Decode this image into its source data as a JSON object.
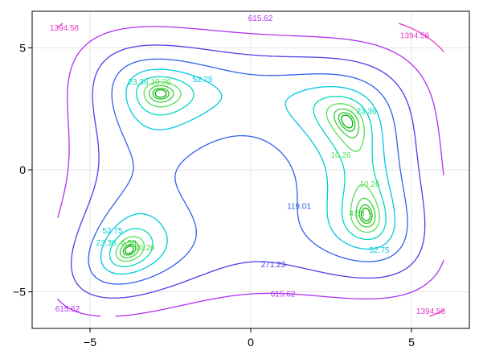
{
  "chart_data": {
    "type": "contour",
    "function": "(x^2 + y - 11)^2 + (x + y^2 - 7)^2",
    "xlim": [
      -6.8,
      6.8
    ],
    "ylim": [
      -6.5,
      6.5
    ],
    "domain": [
      -6,
      6
    ],
    "x_ticks": [
      -5,
      0,
      5
    ],
    "y_ticks": [
      -5,
      0,
      5
    ],
    "x_tick_labels": [
      "−5",
      "0",
      "5"
    ],
    "y_tick_labels": [
      "−5",
      "0",
      "5"
    ],
    "grid": true,
    "levels": [
      1.0,
      2.05,
      4.58,
      10.26,
      23.36,
      52.75,
      119.01,
      271.23,
      615.62,
      1394.58
    ],
    "level_colors": [
      "#00b000",
      "#1ec41e",
      "#3ad23a",
      "#55e055",
      "#00d8b8",
      "#00c8e0",
      "#3060f0",
      "#4a40e8",
      "#b030f0",
      "#e838c8"
    ],
    "labels": [
      {
        "text": "615.62",
        "x": 0.3,
        "y": 6.2
      },
      {
        "text": "1394.58",
        "x": -5.8,
        "y": 5.8
      },
      {
        "text": "1394.58",
        "x": 5.1,
        "y": 5.5
      },
      {
        "text": "52.75",
        "x": -1.5,
        "y": 3.7
      },
      {
        "text": "23.36",
        "x": -3.5,
        "y": 3.6
      },
      {
        "text": "10.26",
        "x": -2.8,
        "y": 3.6
      },
      {
        "text": "23.36",
        "x": 3.6,
        "y": 2.4
      },
      {
        "text": "10.26",
        "x": 2.8,
        "y": 0.6
      },
      {
        "text": "10.26",
        "x": 3.7,
        "y": -0.6
      },
      {
        "text": "4.58",
        "x": 3.3,
        "y": -1.8
      },
      {
        "text": "119.01",
        "x": 1.5,
        "y": -1.5
      },
      {
        "text": "52.75",
        "x": 4.0,
        "y": -3.3
      },
      {
        "text": "271.23",
        "x": 0.7,
        "y": -3.9
      },
      {
        "text": "615.62",
        "x": 1.0,
        "y": -5.1
      },
      {
        "text": "615.62",
        "x": -5.7,
        "y": -5.7
      },
      {
        "text": "1394.58",
        "x": 5.6,
        "y": -5.8
      },
      {
        "text": "52.75",
        "x": -4.3,
        "y": -2.5
      },
      {
        "text": "23.36",
        "x": -4.5,
        "y": -3.0
      },
      {
        "text": "10.26",
        "x": -3.3,
        "y": -3.2
      },
      {
        "text": "4.58",
        "x": -3.8,
        "y": -3.0
      }
    ]
  }
}
